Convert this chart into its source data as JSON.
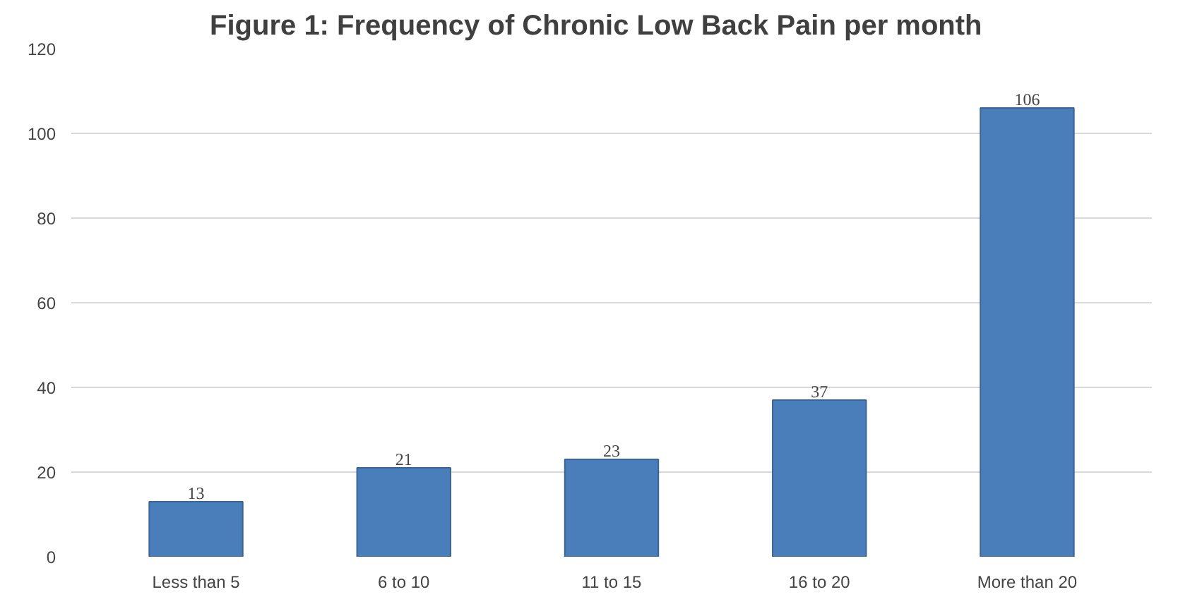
{
  "chart_data": {
    "type": "bar",
    "title": "Figure 1:     Frequency of Chronic Low Back Pain per month",
    "categories": [
      "Less than 5",
      "6 to 10",
      "11 to 15",
      "16 to 20",
      "More than 20"
    ],
    "values": [
      13,
      21,
      23,
      37,
      106
    ],
    "color": "#4a7ebb",
    "ylim": [
      0,
      120
    ],
    "yticks": [
      0,
      20,
      40,
      60,
      80,
      100,
      120
    ],
    "grid": "y",
    "data_labels": true
  }
}
